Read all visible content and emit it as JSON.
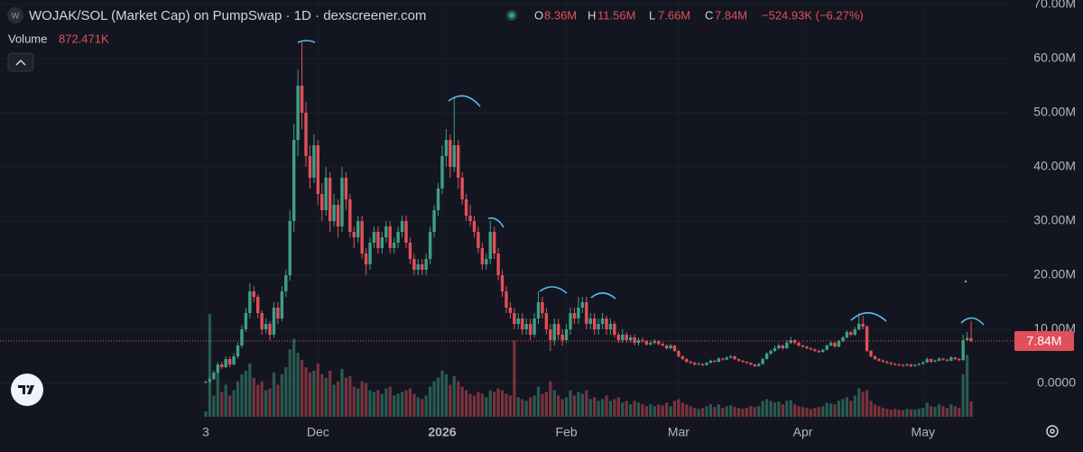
{
  "header": {
    "icon": "W",
    "title": "WOJAK/SOL (Market Cap) on PumpSwap · 1D · dexscreener.com",
    "o_key": "O",
    "o": "8.36M",
    "h_key": "H",
    "h": "11.56M",
    "l_key": "L",
    "l": "7.66M",
    "c_key": "C",
    "c": "7.84M",
    "change": "−524.93K (−6.27%)",
    "volume_key": "Volume",
    "volume": "872.471K"
  },
  "chart_data": {
    "type": "candlestick",
    "up_color": "#3f9f86",
    "down_color": "#e0505a",
    "grid": true,
    "last_price_label": "7.84M",
    "ylim": [
      0,
      70
    ],
    "yticks": [
      {
        "value": 0,
        "label": "0.0000"
      },
      {
        "value": 10,
        "label": "10.00M"
      },
      {
        "value": 20,
        "label": "20.00M"
      },
      {
        "value": 30,
        "label": "30.00M"
      },
      {
        "value": 40,
        "label": "40.00M"
      },
      {
        "value": 50,
        "label": "50.00M"
      },
      {
        "value": 60,
        "label": "60.00M"
      },
      {
        "value": 70,
        "label": "70.00M"
      }
    ],
    "categories": [
      "3",
      null,
      null,
      null,
      null,
      null,
      null,
      null,
      null,
      null,
      null,
      null,
      null,
      null,
      null,
      null,
      null,
      null,
      null,
      null,
      null,
      null,
      null,
      null,
      null,
      null,
      null,
      null,
      "Dec",
      null,
      null,
      null,
      null,
      null,
      null,
      null,
      null,
      null,
      null,
      null,
      null,
      null,
      null,
      null,
      null,
      null,
      null,
      null,
      null,
      null,
      null,
      null,
      null,
      null,
      null,
      null,
      null,
      null,
      null,
      "2026",
      null,
      null,
      null,
      null,
      null,
      null,
      null,
      null,
      null,
      null,
      null,
      null,
      null,
      null,
      null,
      null,
      null,
      null,
      null,
      null,
      null,
      null,
      null,
      null,
      null,
      null,
      null,
      null,
      null,
      null,
      "Feb",
      null,
      null,
      null,
      null,
      null,
      null,
      null,
      null,
      null,
      null,
      null,
      null,
      null,
      null,
      null,
      null,
      null,
      null,
      null,
      null,
      null,
      null,
      null,
      null,
      null,
      null,
      null,
      "Mar",
      null,
      null,
      null,
      null,
      null,
      null,
      null,
      null,
      null,
      null,
      null,
      null,
      null,
      null,
      null,
      null,
      null,
      null,
      null,
      null,
      null,
      null,
      null,
      null,
      null,
      null,
      null,
      null,
      null,
      null,
      "Apr",
      null,
      null,
      null,
      null,
      null,
      null,
      null,
      null,
      null,
      null,
      null,
      null,
      null,
      null,
      null,
      null,
      null,
      null,
      null,
      null,
      null,
      null,
      null,
      null,
      null,
      null,
      null,
      null,
      null,
      "May",
      null,
      null,
      null,
      null,
      null,
      null,
      null,
      null,
      null,
      null,
      null,
      null
    ],
    "ohlc": [
      [
        0.1,
        0.5,
        0.1,
        0.3
      ],
      [
        0.3,
        1.2,
        0.2,
        0.8
      ],
      [
        0.8,
        2.4,
        0.6,
        2
      ],
      [
        2,
        4,
        1.8,
        3.5
      ],
      [
        3.5,
        4,
        2.6,
        3
      ],
      [
        3,
        5,
        2.8,
        4.5
      ],
      [
        4.5,
        5,
        3,
        3.5
      ],
      [
        3.5,
        5.6,
        3.3,
        5
      ],
      [
        5,
        7.6,
        4.6,
        7
      ],
      [
        7,
        10.8,
        6.5,
        10
      ],
      [
        10,
        14,
        9.5,
        13
      ],
      [
        13,
        18.5,
        12,
        17
      ],
      [
        17,
        18,
        15,
        16
      ],
      [
        16,
        16.5,
        12,
        13
      ],
      [
        13,
        13.5,
        9,
        10
      ],
      [
        10,
        12,
        9.2,
        11
      ],
      [
        11,
        11.5,
        8,
        9
      ],
      [
        9,
        15,
        8.5,
        14
      ],
      [
        14,
        15,
        11,
        12
      ],
      [
        12,
        18,
        11.5,
        17
      ],
      [
        17,
        21,
        16,
        20
      ],
      [
        20,
        32,
        19,
        30
      ],
      [
        30,
        48,
        28,
        45
      ],
      [
        45,
        58,
        42,
        55
      ],
      [
        55,
        63,
        47,
        50
      ],
      [
        50,
        52,
        40,
        42
      ],
      [
        42,
        44,
        36,
        38
      ],
      [
        38,
        46,
        37,
        44
      ],
      [
        44,
        45,
        33,
        35
      ],
      [
        35,
        37,
        30,
        32
      ],
      [
        32,
        40,
        31,
        38
      ],
      [
        38,
        39,
        28,
        30
      ],
      [
        30,
        35,
        29,
        33
      ],
      [
        33,
        34,
        27,
        29
      ],
      [
        29,
        40,
        28,
        38
      ],
      [
        38,
        39,
        32,
        34
      ],
      [
        34,
        35,
        27,
        28
      ],
      [
        28,
        29,
        25,
        27
      ],
      [
        27,
        31,
        26,
        30
      ],
      [
        30,
        31,
        23,
        24
      ],
      [
        24,
        25,
        20,
        22
      ],
      [
        22,
        27,
        21,
        26
      ],
      [
        26,
        29,
        25,
        28
      ],
      [
        28,
        29,
        24,
        25
      ],
      [
        25,
        28,
        24,
        27
      ],
      [
        27,
        30,
        26,
        29
      ],
      [
        29,
        30,
        24,
        25
      ],
      [
        25,
        27,
        24,
        26
      ],
      [
        26,
        29,
        25,
        28
      ],
      [
        28,
        31,
        27,
        30
      ],
      [
        30,
        31,
        25,
        26
      ],
      [
        26,
        27,
        22,
        23
      ],
      [
        23,
        24,
        20,
        21
      ],
      [
        21,
        23,
        20,
        22
      ],
      [
        22,
        23,
        20,
        21
      ],
      [
        21,
        24,
        20,
        23
      ],
      [
        23,
        29,
        22,
        28
      ],
      [
        28,
        33,
        27,
        32
      ],
      [
        32,
        37,
        31,
        36
      ],
      [
        36,
        44,
        35,
        42
      ],
      [
        42,
        47,
        40,
        45
      ],
      [
        45,
        46,
        38,
        40
      ],
      [
        40,
        53,
        39,
        44
      ],
      [
        44,
        45,
        36,
        38
      ],
      [
        38,
        39,
        33,
        34
      ],
      [
        34,
        35,
        30,
        31
      ],
      [
        31,
        33,
        29,
        30
      ],
      [
        30,
        31,
        27,
        28
      ],
      [
        28,
        29,
        24,
        25
      ],
      [
        25,
        26,
        21,
        22
      ],
      [
        22,
        24,
        21,
        23
      ],
      [
        23,
        30,
        22,
        28
      ],
      [
        28,
        29,
        23,
        24
      ],
      [
        24,
        25,
        19,
        20
      ],
      [
        20,
        21,
        16,
        17
      ],
      [
        17,
        18,
        13,
        14
      ],
      [
        14,
        15,
        12,
        13
      ],
      [
        13,
        14,
        10,
        11
      ],
      [
        11,
        13,
        10,
        12
      ],
      [
        12,
        13,
        9,
        10
      ],
      [
        10,
        12,
        9,
        11
      ],
      [
        11,
        12,
        8,
        9
      ],
      [
        9,
        13,
        8.5,
        12
      ],
      [
        12,
        17,
        11,
        15
      ],
      [
        15,
        16,
        12,
        13
      ],
      [
        13,
        14,
        9,
        10
      ],
      [
        10,
        11,
        6,
        8
      ],
      [
        8,
        12,
        7,
        11
      ],
      [
        11,
        12,
        8,
        9
      ],
      [
        9,
        10,
        7,
        8
      ],
      [
        8,
        11,
        7.5,
        10
      ],
      [
        10,
        14,
        9,
        13
      ],
      [
        13,
        14,
        11,
        12
      ],
      [
        12,
        16,
        11,
        14
      ],
      [
        14,
        16,
        13,
        15
      ],
      [
        15,
        16,
        10,
        11
      ],
      [
        11,
        13,
        10,
        12
      ],
      [
        12,
        13,
        9,
        10
      ],
      [
        10,
        12,
        9,
        11
      ],
      [
        11,
        13,
        10,
        12
      ],
      [
        12,
        12.5,
        9,
        10
      ],
      [
        10,
        12,
        9,
        11
      ],
      [
        11,
        11.5,
        8.5,
        9
      ],
      [
        9,
        9.5,
        7.5,
        8
      ],
      [
        8,
        10,
        7.5,
        9
      ],
      [
        9,
        9.5,
        7.5,
        8
      ],
      [
        8,
        9,
        7.5,
        8.5
      ],
      [
        8.5,
        9,
        7,
        7.5
      ],
      [
        7.5,
        8.5,
        7,
        8
      ],
      [
        8,
        8.5,
        7.5,
        7.8
      ],
      [
        7.8,
        8,
        7,
        7.2
      ],
      [
        7.2,
        8,
        7,
        7.5
      ],
      [
        7.5,
        8.2,
        7.2,
        7.8
      ],
      [
        7.8,
        8,
        7,
        7.3
      ],
      [
        7.3,
        7.6,
        6.8,
        7
      ],
      [
        7,
        7.2,
        6.2,
        6.5
      ],
      [
        6.5,
        7.3,
        6.3,
        7
      ],
      [
        7,
        7.1,
        5.8,
        6
      ],
      [
        6,
        6.2,
        4.8,
        5
      ],
      [
        5,
        5.2,
        4.3,
        4.5
      ],
      [
        4.5,
        4.7,
        3.8,
        4
      ],
      [
        4,
        4.2,
        3.6,
        3.8
      ],
      [
        3.8,
        4,
        3.3,
        3.5
      ],
      [
        3.5,
        3.9,
        3.4,
        3.6
      ],
      [
        3.6,
        3.7,
        3.2,
        3.4
      ],
      [
        3.4,
        4,
        3.3,
        3.8
      ],
      [
        3.8,
        4.4,
        3.7,
        4.2
      ],
      [
        4.2,
        4.3,
        3.8,
        4
      ],
      [
        4,
        4.8,
        3.9,
        4.6
      ],
      [
        4.6,
        4.7,
        4.2,
        4.4
      ],
      [
        4.4,
        5,
        4.3,
        4.8
      ],
      [
        4.8,
        5.3,
        4.6,
        5
      ],
      [
        5,
        5.1,
        4.3,
        4.5
      ],
      [
        4.5,
        4.6,
        4,
        4.2
      ],
      [
        4.2,
        4.3,
        3.8,
        4
      ],
      [
        4,
        4.1,
        3.6,
        3.8
      ],
      [
        3.8,
        3.9,
        3.3,
        3.5
      ],
      [
        3.5,
        3.6,
        3,
        3.2
      ],
      [
        3.2,
        3.8,
        3.1,
        3.6
      ],
      [
        3.6,
        4.7,
        3.5,
        4.5
      ],
      [
        4.5,
        5.8,
        4.4,
        5.5
      ],
      [
        5.5,
        6.3,
        5.3,
        6
      ],
      [
        6,
        7,
        5.8,
        6.5
      ],
      [
        6.5,
        7.4,
        6.3,
        7
      ],
      [
        7,
        7.2,
        6.2,
        6.5
      ],
      [
        6.5,
        8,
        6.4,
        7.5
      ],
      [
        7.5,
        8.6,
        7.3,
        8
      ],
      [
        8,
        8.2,
        7.2,
        7.5
      ],
      [
        7.5,
        7.7,
        6.8,
        7
      ],
      [
        7,
        7.2,
        6.6,
        6.8
      ],
      [
        6.8,
        7,
        6.3,
        6.5
      ],
      [
        6.5,
        6.7,
        6.1,
        6.3
      ],
      [
        6.3,
        6.5,
        5.8,
        6
      ],
      [
        6,
        6.2,
        5.6,
        5.8
      ],
      [
        5.8,
        6.4,
        5.7,
        6.2
      ],
      [
        6.2,
        7.2,
        6.1,
        7
      ],
      [
        7,
        7.8,
        6.9,
        7.5
      ],
      [
        7.5,
        7.7,
        6.6,
        6.8
      ],
      [
        6.8,
        8,
        6.7,
        7.8
      ],
      [
        7.8,
        8.8,
        7.6,
        8.5
      ],
      [
        8.5,
        9.8,
        8.3,
        9.5
      ],
      [
        9.5,
        9.7,
        8.7,
        9
      ],
      [
        9,
        10.4,
        8.8,
        10
      ],
      [
        10,
        13,
        9.8,
        11
      ],
      [
        11,
        12.5,
        10,
        10.5
      ],
      [
        10.5,
        10.8,
        5.8,
        6
      ],
      [
        6,
        6.2,
        4.8,
        5
      ],
      [
        5,
        5.2,
        4.3,
        4.5
      ],
      [
        4.5,
        4.7,
        4,
        4.2
      ],
      [
        4.2,
        4.4,
        3.8,
        4
      ],
      [
        4,
        4.2,
        3.6,
        3.8
      ],
      [
        3.8,
        4,
        3.4,
        3.6
      ],
      [
        3.6,
        3.8,
        3.3,
        3.5
      ],
      [
        3.5,
        3.7,
        3.2,
        3.4
      ],
      [
        3.4,
        3.6,
        3.1,
        3.3
      ],
      [
        3.3,
        3.7,
        3.2,
        3.5
      ],
      [
        3.5,
        3.6,
        3,
        3.2
      ],
      [
        3.2,
        3.6,
        3.1,
        3.4
      ],
      [
        3.4,
        3.8,
        3.3,
        3.6
      ],
      [
        3.6,
        4.1,
        3.5,
        3.9
      ],
      [
        3.9,
        4.8,
        3.8,
        4.5
      ],
      [
        4.5,
        4.6,
        3.8,
        4
      ],
      [
        4,
        4.4,
        3.9,
        4.2
      ],
      [
        4.2,
        4.8,
        4.1,
        4.6
      ],
      [
        4.6,
        4.7,
        4.2,
        4.4
      ],
      [
        4.4,
        4.5,
        4,
        4.2
      ],
      [
        4.2,
        5,
        4.1,
        4.8
      ],
      [
        4.8,
        4.9,
        4.3,
        4.5
      ],
      [
        4.5,
        4.7,
        4.1,
        4.3
      ],
      [
        4.3,
        9,
        4.2,
        8
      ],
      [
        8,
        9.5,
        7.8,
        8.4
      ],
      [
        8.36,
        11.56,
        7.66,
        7.84
      ]
    ],
    "volume": [
      300,
      5800,
      1200,
      2500,
      1400,
      1800,
      1200,
      1500,
      2000,
      2400,
      2600,
      3000,
      2200,
      1800,
      2000,
      1500,
      1600,
      2500,
      1800,
      2400,
      2800,
      3800,
      4400,
      3600,
      3200,
      2800,
      2500,
      2600,
      3000,
      2400,
      2200,
      2600,
      1800,
      2000,
      2700,
      2200,
      2300,
      1700,
      1600,
      2000,
      1900,
      1500,
      1400,
      1500,
      1300,
      1600,
      1700,
      1200,
      1300,
      1400,
      1500,
      1600,
      1300,
      1100,
      1000,
      1200,
      1700,
      2000,
      2200,
      2600,
      2400,
      1800,
      2300,
      2000,
      1700,
      1500,
      1300,
      1200,
      1400,
      1300,
      1100,
      1500,
      1400,
      1600,
      1500,
      1300,
      1200,
      4300,
      1100,
      1000,
      900,
      1100,
      1200,
      1700,
      1300,
      1400,
      2000,
      1500,
      1200,
      1000,
      1100,
      1500,
      1200,
      1400,
      1300,
      1500,
      1000,
      1100,
      900,
      1000,
      1200,
      900,
      1000,
      1100,
      800,
      900,
      700,
      900,
      800,
      700,
      600,
      700,
      600,
      700,
      650,
      800,
      600,
      900,
      1000,
      800,
      700,
      600,
      500,
      450,
      500,
      600,
      700,
      550,
      700,
      500,
      600,
      650,
      550,
      500,
      450,
      500,
      600,
      550,
      600,
      900,
      1000,
      900,
      800,
      850,
      700,
      900,
      950,
      700,
      600,
      550,
      500,
      450,
      500,
      550,
      600,
      800,
      750,
      700,
      900,
      1000,
      1100,
      900,
      1200,
      1600,
      1400,
      1500,
      900,
      700,
      600,
      500,
      450,
      400,
      450,
      400,
      380,
      450,
      420,
      400,
      450,
      500,
      800,
      600,
      550,
      700,
      600,
      500,
      700,
      600,
      500,
      2400,
      3500,
      872.471
    ]
  }
}
